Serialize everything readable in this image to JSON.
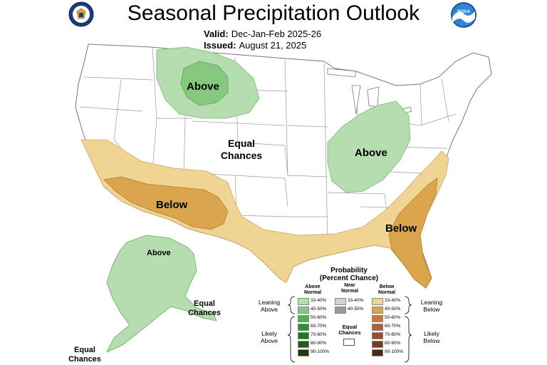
{
  "header": {
    "title": "Seasonal Precipitation Outlook",
    "valid_label": "Valid:",
    "valid_value": "Dec-Jan-Feb 2025-26",
    "issued_label": "Issued:",
    "issued_value": "August 21, 2025"
  },
  "logos": {
    "left": "doc-seal-icon",
    "right": "noaa-logo-icon"
  },
  "map_labels": {
    "above_north": "Above",
    "above_east": "Above",
    "below_southwest": "Below",
    "below_southeast": "Below",
    "equal_chances_line1": "Equal",
    "equal_chances_line2": "Chances",
    "alaska_above": "Above",
    "alaska_equal_line1": "Equal",
    "alaska_equal_line2": "Chances",
    "offshore_equal_line1": "Equal",
    "offshore_equal_line2": "Chances"
  },
  "colors": {
    "above_33_40": "#b5ddb0",
    "above_40_50": "#86c97e",
    "below_33_40": "#f0d493",
    "below_40_50": "#dba54e",
    "state_line": "#999999"
  },
  "legend": {
    "title_line1": "Probability",
    "title_line2": "(Percent Chance)",
    "above_header_1": "Above",
    "above_header_2": "Normal",
    "near_header_1": "Near",
    "near_header_2": "Normal",
    "below_header_1": "Below",
    "below_header_2": "Normal",
    "leaning_above_1": "Leaning",
    "leaning_above_2": "Above",
    "likely_above_1": "Likely",
    "likely_above_2": "Above",
    "leaning_below_1": "Leaning",
    "leaning_below_2": "Below",
    "likely_below_1": "Likely",
    "likely_below_2": "Below",
    "equal_1": "Equal",
    "equal_2": "Chances",
    "above_ranges": [
      "33-40%",
      "40-50%",
      "50-60%",
      "60-70%",
      "70-80%",
      "80-90%",
      "90-100%"
    ],
    "above_colors": [
      "#b5ddb0",
      "#86c97e",
      "#4bb545",
      "#239b2a",
      "#13801d",
      "#245a16",
      "#1a3a10"
    ],
    "near_ranges": [
      "33-40%",
      "40-50%"
    ],
    "near_colors": [
      "#d4d4d4",
      "#9a9a9a"
    ],
    "below_ranges": [
      "33-40%",
      "40-50%",
      "50-60%",
      "60-70%",
      "70-80%",
      "80-90%",
      "90-100%"
    ],
    "below_colors": [
      "#f0d493",
      "#dba54e",
      "#c8763a",
      "#b45d3a",
      "#9c4a2d",
      "#7d3a20",
      "#4b2a1a"
    ]
  }
}
